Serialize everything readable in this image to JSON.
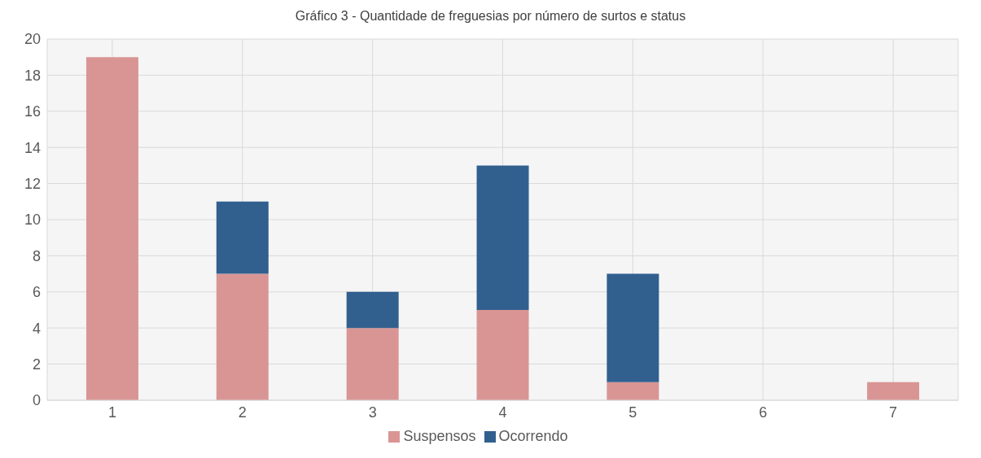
{
  "chart_data": {
    "type": "bar",
    "title": "Gráfico 3 - Quantidade de freguesias por número de surtos e status",
    "categories": [
      "1",
      "2",
      "3",
      "4",
      "5",
      "6",
      "7"
    ],
    "stacked": true,
    "series": [
      {
        "name": "Suspensos",
        "color": "#d99594",
        "values": [
          19,
          7,
          4,
          5,
          1,
          0,
          1
        ]
      },
      {
        "name": "Ocorrendo",
        "color": "#31608f",
        "values": [
          0,
          4,
          2,
          8,
          6,
          0,
          0
        ]
      }
    ],
    "ylim": [
      0,
      20
    ],
    "yticks": [
      0,
      2,
      4,
      6,
      8,
      10,
      12,
      14,
      16,
      18,
      20
    ],
    "grid": true,
    "legend": "bottom"
  }
}
